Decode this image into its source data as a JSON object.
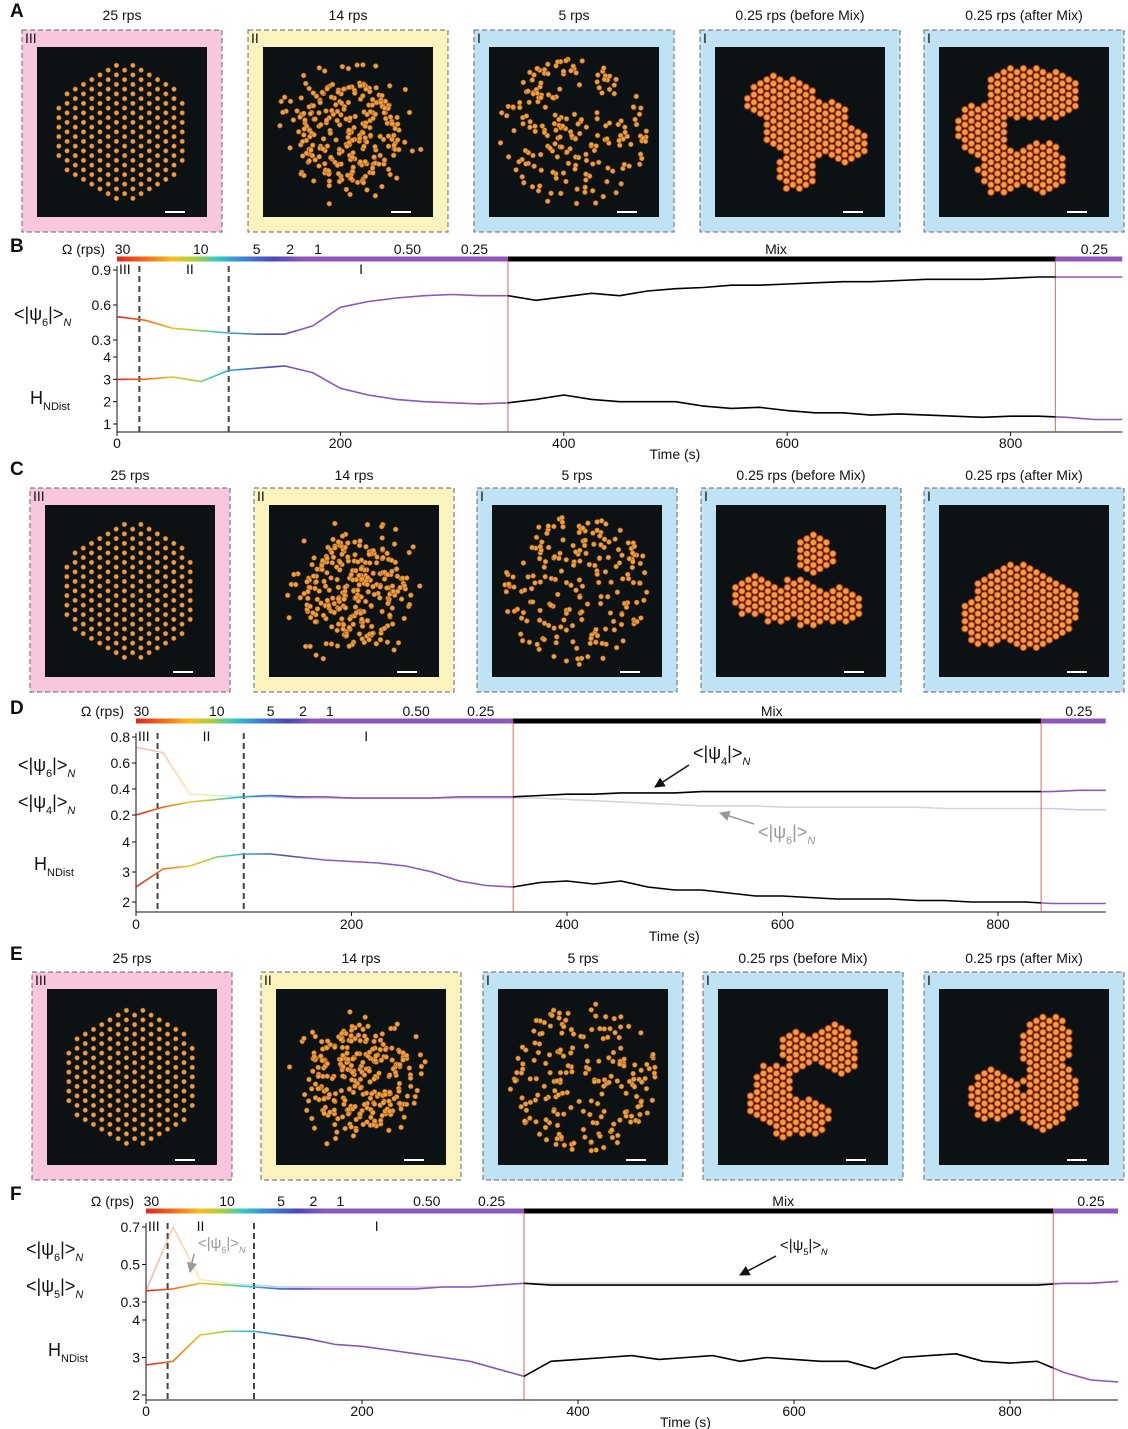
{
  "panels": [
    {
      "label": "A",
      "frames": [
        {
          "title": "25 rps",
          "regime": "III",
          "scale": "1 mm"
        },
        {
          "title": "14 rps",
          "regime": "II",
          "scale": "1 mm"
        },
        {
          "title": "5 rps",
          "regime": "I",
          "scale": "1 mm"
        },
        {
          "title": "0.25 rps (before Mix)",
          "regime": "I",
          "scale": "1 mm"
        },
        {
          "title": "0.25 rps (after Mix)",
          "regime": "I",
          "scale": "1 mm"
        }
      ]
    },
    {
      "label": "C",
      "frames": [
        {
          "title": "25 rps",
          "regime": "III",
          "scale": "1 mm"
        },
        {
          "title": "14 rps",
          "regime": "II",
          "scale": "1 mm"
        },
        {
          "title": "5 rps",
          "regime": "I",
          "scale": "1 mm"
        },
        {
          "title": "0.25 rps (before Mix)",
          "regime": "I",
          "scale": "1 mm"
        },
        {
          "title": "0.25 rps (after Mix)",
          "regime": "I",
          "scale": "1 mm"
        }
      ]
    },
    {
      "label": "E",
      "frames": [
        {
          "title": "25 rps",
          "regime": "III",
          "scale": "1 mm"
        },
        {
          "title": "14 rps",
          "regime": "II",
          "scale": "1 mm"
        },
        {
          "title": "5 rps",
          "regime": "I",
          "scale": "1 mm"
        },
        {
          "title": "0.25 rps (before Mix)",
          "regime": "I",
          "scale": "1 mm"
        },
        {
          "title": "0.25 rps (after Mix)",
          "regime": "I",
          "scale": "1 mm"
        }
      ]
    }
  ],
  "chart_data": [
    {
      "type": "line",
      "label": "B",
      "rate_title": "Ω (rps)",
      "rate_labels": [
        "30",
        "10",
        "5",
        "2",
        "1",
        "0.50",
        "0.25",
        "Mix",
        "0.25"
      ],
      "regime_labels": [
        "III",
        "II",
        "I"
      ],
      "regime_lines": [
        20,
        100
      ],
      "mix_lines": [
        350,
        840
      ],
      "xlabel": "Time (s)",
      "xlim": [
        0,
        900
      ],
      "xticks": [
        0,
        200,
        400,
        600,
        800
      ],
      "ylabels": [
        [
          "<|ψ",
          "6",
          "|>",
          "N"
        ]
      ],
      "ylim": [
        0.3,
        0.9
      ],
      "yticks": [
        0.3,
        0.6,
        0.9
      ],
      "y2label": [
        "H",
        "NDist"
      ],
      "y2lim": [
        1,
        4
      ],
      "y2ticks": [
        1,
        2,
        3,
        4
      ],
      "x": [
        0,
        25,
        50,
        75,
        100,
        125,
        150,
        175,
        200,
        225,
        250,
        275,
        300,
        325,
        350,
        375,
        400,
        425,
        450,
        475,
        500,
        525,
        550,
        575,
        600,
        625,
        650,
        675,
        700,
        725,
        750,
        775,
        800,
        825,
        850,
        875,
        900
      ],
      "series": [
        {
          "name": "<|ψ6|>N",
          "values": [
            0.5,
            0.47,
            0.4,
            0.38,
            0.36,
            0.35,
            0.35,
            0.42,
            0.58,
            0.63,
            0.66,
            0.68,
            0.69,
            0.68,
            0.68,
            0.64,
            0.67,
            0.7,
            0.68,
            0.72,
            0.74,
            0.75,
            0.77,
            0.77,
            0.78,
            0.79,
            0.8,
            0.8,
            0.81,
            0.82,
            0.82,
            0.82,
            0.83,
            0.84,
            0.84,
            0.84,
            0.84
          ]
        },
        {
          "name": "HNDist",
          "axis": "y2",
          "values": [
            3.0,
            3.0,
            3.1,
            2.9,
            3.4,
            3.5,
            3.6,
            3.3,
            2.6,
            2.3,
            2.1,
            2.0,
            1.95,
            1.9,
            1.95,
            2.1,
            2.3,
            2.1,
            2.0,
            2.0,
            2.0,
            1.8,
            1.7,
            1.75,
            1.6,
            1.5,
            1.5,
            1.4,
            1.45,
            1.4,
            1.35,
            1.3,
            1.35,
            1.35,
            1.3,
            1.2,
            1.2
          ]
        }
      ],
      "annotations": []
    },
    {
      "type": "line",
      "label": "D",
      "rate_title": "Ω (rps)",
      "rate_labels": [
        "30",
        "10",
        "5",
        "2",
        "1",
        "0.50",
        "0.25",
        "Mix",
        "0.25"
      ],
      "regime_labels": [
        "III",
        "II",
        "I"
      ],
      "regime_lines": [
        20,
        100
      ],
      "mix_lines": [
        350,
        840
      ],
      "xlabel": "Time (s)",
      "xlim": [
        0,
        900
      ],
      "xticks": [
        0,
        200,
        400,
        600,
        800
      ],
      "ylabels": [
        [
          "<|ψ",
          "6",
          "|>",
          "N"
        ],
        [
          "<|ψ",
          "4",
          "|>",
          "N"
        ]
      ],
      "ylim": [
        0.2,
        0.8
      ],
      "yticks": [
        0.2,
        0.4,
        0.6,
        0.8
      ],
      "y2label": [
        "H",
        "NDist"
      ],
      "y2lim": [
        2,
        4
      ],
      "y2ticks": [
        2,
        3,
        4
      ],
      "x": [
        0,
        25,
        50,
        75,
        100,
        125,
        150,
        175,
        200,
        225,
        250,
        275,
        300,
        325,
        350,
        375,
        400,
        425,
        450,
        475,
        500,
        525,
        550,
        575,
        600,
        625,
        650,
        675,
        700,
        725,
        750,
        775,
        800,
        825,
        850,
        875,
        900
      ],
      "series": [
        {
          "name": "<|ψ6|>N",
          "opacity": 0.35,
          "values": [
            0.72,
            0.68,
            0.36,
            0.35,
            0.34,
            0.34,
            0.33,
            0.33,
            0.33,
            0.33,
            0.33,
            0.33,
            0.33,
            0.33,
            0.33,
            0.33,
            0.32,
            0.31,
            0.3,
            0.29,
            0.28,
            0.27,
            0.27,
            0.27,
            0.26,
            0.26,
            0.26,
            0.26,
            0.26,
            0.26,
            0.25,
            0.25,
            0.25,
            0.25,
            0.25,
            0.24,
            0.24
          ]
        },
        {
          "name": "<|ψ4|>N",
          "values": [
            0.2,
            0.26,
            0.3,
            0.32,
            0.34,
            0.35,
            0.34,
            0.34,
            0.33,
            0.33,
            0.33,
            0.33,
            0.34,
            0.34,
            0.34,
            0.35,
            0.36,
            0.36,
            0.37,
            0.37,
            0.37,
            0.38,
            0.38,
            0.38,
            0.38,
            0.38,
            0.38,
            0.38,
            0.38,
            0.38,
            0.38,
            0.38,
            0.38,
            0.38,
            0.38,
            0.39,
            0.39
          ]
        },
        {
          "name": "HNDist",
          "axis": "y2",
          "values": [
            2.5,
            3.1,
            3.2,
            3.5,
            3.6,
            3.6,
            3.5,
            3.4,
            3.35,
            3.3,
            3.2,
            3.0,
            2.7,
            2.55,
            2.5,
            2.65,
            2.7,
            2.6,
            2.7,
            2.5,
            2.4,
            2.4,
            2.3,
            2.2,
            2.2,
            2.15,
            2.1,
            2.1,
            2.1,
            2.05,
            2.05,
            2.0,
            2.0,
            2.0,
            1.95,
            1.95,
            1.95
          ]
        }
      ],
      "annotations": [
        {
          "text": [
            "<|ψ",
            "4",
            "|>",
            "N"
          ],
          "color": "#111111"
        },
        {
          "text": [
            "<|ψ",
            "6",
            "|>",
            "N"
          ],
          "color": "#999999"
        }
      ]
    },
    {
      "type": "line",
      "label": "F",
      "rate_title": "Ω (rps)",
      "rate_labels": [
        "30",
        "10",
        "5",
        "2",
        "1",
        "0.50",
        "0.25",
        "Mix",
        "0.25"
      ],
      "regime_labels": [
        "III",
        "II",
        "I"
      ],
      "regime_lines": [
        20,
        100
      ],
      "mix_lines": [
        350,
        840
      ],
      "xlabel": "Time (s)",
      "xlim": [
        0,
        900
      ],
      "xticks": [
        0,
        200,
        400,
        600,
        800
      ],
      "ylabels": [
        [
          "<|ψ",
          "6",
          "|>",
          "N"
        ],
        [
          "<|ψ",
          "5",
          "|>",
          "N"
        ]
      ],
      "ylim": [
        0.3,
        0.7
      ],
      "yticks": [
        0.3,
        0.5,
        0.7
      ],
      "y2label": [
        "H",
        "NDist"
      ],
      "y2lim": [
        2,
        4
      ],
      "y2ticks": [
        2,
        3,
        4
      ],
      "x": [
        0,
        25,
        50,
        75,
        100,
        125,
        150,
        175,
        200,
        225,
        250,
        275,
        300,
        325,
        350,
        375,
        400,
        425,
        450,
        475,
        500,
        525,
        550,
        575,
        600,
        625,
        650,
        675,
        700,
        725,
        750,
        775,
        800,
        825,
        850,
        875,
        900
      ],
      "series": [
        {
          "name": "<|ψ6|>N",
          "opacity": 0.35,
          "values": [
            0.36,
            0.7,
            0.42,
            0.4,
            0.39,
            0.38,
            0.38,
            0.38,
            0.38,
            0.38,
            0.38,
            0.38,
            0.38,
            0.39,
            0.4,
            0.4,
            0.4,
            0.4,
            0.4,
            0.4,
            0.4,
            0.4,
            0.4,
            0.4,
            0.4,
            0.4,
            0.4,
            0.4,
            0.4,
            0.4,
            0.4,
            0.4,
            0.4,
            0.4,
            0.4,
            0.4,
            0.41
          ]
        },
        {
          "name": "<|ψ5|>N",
          "values": [
            0.36,
            0.37,
            0.4,
            0.39,
            0.38,
            0.37,
            0.37,
            0.37,
            0.37,
            0.37,
            0.37,
            0.38,
            0.38,
            0.39,
            0.4,
            0.39,
            0.39,
            0.39,
            0.39,
            0.39,
            0.39,
            0.39,
            0.39,
            0.39,
            0.39,
            0.39,
            0.39,
            0.39,
            0.39,
            0.39,
            0.39,
            0.39,
            0.39,
            0.39,
            0.4,
            0.4,
            0.41
          ]
        },
        {
          "name": "HNDist",
          "axis": "y2",
          "values": [
            2.8,
            2.9,
            3.6,
            3.7,
            3.7,
            3.6,
            3.5,
            3.35,
            3.3,
            3.2,
            3.1,
            3.0,
            2.9,
            2.7,
            2.5,
            2.9,
            2.95,
            3.0,
            3.05,
            2.95,
            3.0,
            3.05,
            2.9,
            3.0,
            2.95,
            2.9,
            2.9,
            2.7,
            3.0,
            3.05,
            3.1,
            2.9,
            2.85,
            2.9,
            2.6,
            2.4,
            2.35
          ]
        }
      ],
      "annotations": [
        {
          "text": [
            "<|ψ",
            "6",
            "|>",
            "N"
          ],
          "color": "#999999"
        },
        {
          "text": [
            "<|ψ",
            "5",
            "|>",
            "N"
          ],
          "color": "#111111"
        }
      ]
    }
  ]
}
